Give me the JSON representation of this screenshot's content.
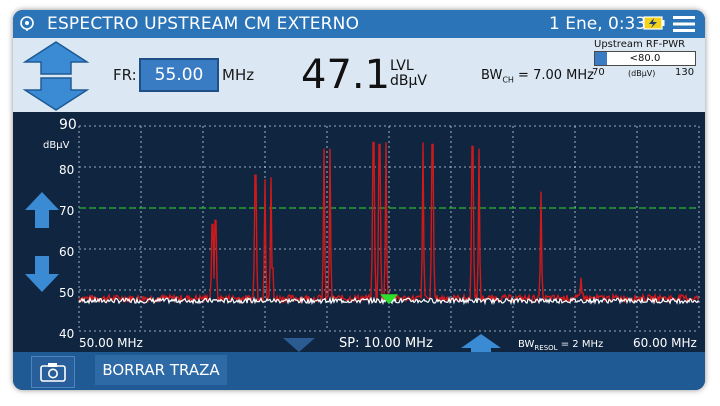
{
  "header": {
    "title": "ESPECTRO UPSTREAM CM EXTERNO",
    "datetime": "1 Ene, 0:33",
    "battery_icon": "battery-charging-icon",
    "menu_icon": "hamburger-menu-icon"
  },
  "controls": {
    "fr_label": "FR:",
    "fr_value": "55.00",
    "fr_unit": "MHz",
    "level_value": "47.1",
    "level_label": "LVL",
    "level_unit": "dBµV",
    "bw_label": "BW",
    "bw_sub": "CH",
    "bw_value": " = 7.00 MHz"
  },
  "upstream_pwr": {
    "title": "Upstream RF-PWR",
    "reading": "<80.0",
    "unit": "(dBµV)",
    "min": "70",
    "max": "130",
    "level_fraction": 0.12
  },
  "spectrum": {
    "unit_label": "dBµV",
    "y_ticks": [
      "90",
      "80",
      "70",
      "60",
      "50",
      "40"
    ],
    "start_label": "50.00 MHz",
    "span_label": "SP: 10.00 MHz",
    "resol_label": "BW",
    "resol_sub": "RESOL",
    "resol_value": " = 2 MHz",
    "end_label": "60.00 MHz"
  },
  "chart_data": {
    "type": "line",
    "x_range": [
      50,
      60
    ],
    "ylim": [
      40,
      90
    ],
    "threshold_dbuv": 70,
    "marker_mhz": 55.0,
    "series": [
      {
        "color": "#d01a1a"
      },
      {
        "color": "#ffffff"
      }
    ],
    "peaks_mhz_dbuv": [
      [
        52.15,
        66
      ],
      [
        52.2,
        67
      ],
      [
        52.85,
        78
      ],
      [
        53.0,
        77
      ],
      [
        53.1,
        77.5
      ],
      [
        53.95,
        84.5
      ],
      [
        54.05,
        84.5
      ],
      [
        54.75,
        86
      ],
      [
        54.85,
        85.5
      ],
      [
        54.95,
        86
      ],
      [
        55.55,
        86
      ],
      [
        55.7,
        85.5
      ],
      [
        56.35,
        85
      ],
      [
        56.45,
        84.5
      ],
      [
        57.45,
        74
      ],
      [
        58.1,
        53
      ]
    ],
    "noise_floor_dbuv": 48
  },
  "footer": {
    "camera_icon": "camera-icon",
    "clear_label": "BORRAR TRAZA"
  },
  "colors": {
    "title_bar": "#2c74b8",
    "panel": "#dbe8f4",
    "plot_bg": "#0f2540",
    "trace": "#d01a1a",
    "threshold": "#1fbf1f"
  }
}
